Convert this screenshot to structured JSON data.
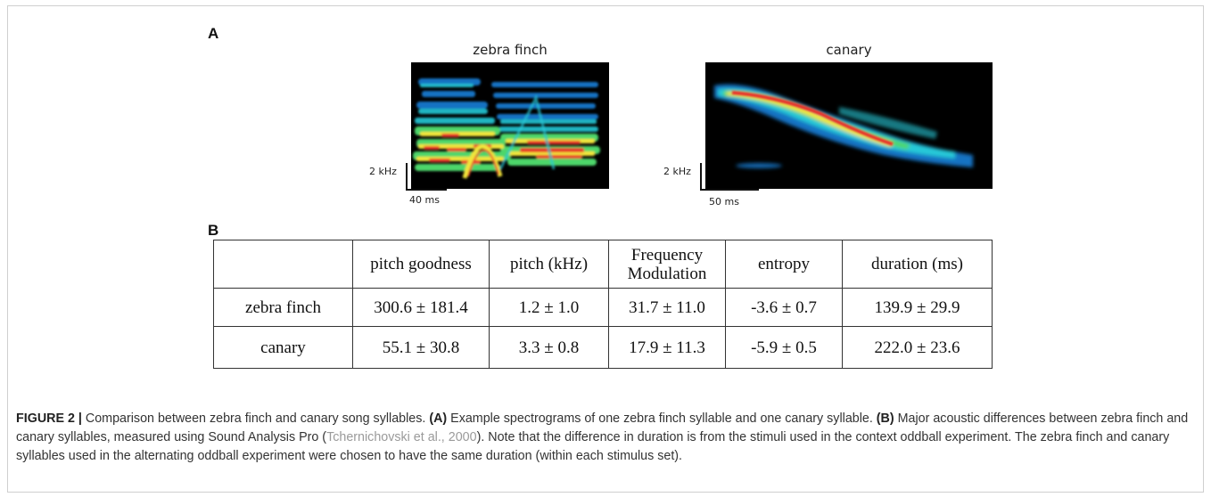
{
  "panel_a": {
    "letter": "A",
    "spectrograms": [
      {
        "title": "zebra finch",
        "freq_scale": "2 kHz",
        "time_scale": "40 ms"
      },
      {
        "title": "canary",
        "freq_scale": "2 kHz",
        "time_scale": "50 ms"
      }
    ]
  },
  "panel_b": {
    "letter": "B",
    "table": {
      "columns": [
        "",
        "pitch goodness",
        "pitch (kHz)",
        "Frequency Modulation",
        "entropy",
        "duration (ms)"
      ],
      "rows": [
        {
          "label": "zebra finch",
          "values": [
            "300.6 ± 181.4",
            "1.2 ± 1.0",
            "31.7 ± 11.0",
            "-3.6 ± 0.7",
            "139.9 ± 29.9"
          ]
        },
        {
          "label": "canary",
          "values": [
            "55.1 ± 30.8",
            "3.3 ± 0.8",
            "17.9 ± 11.3",
            "-5.9 ± 0.5",
            "222.0 ± 23.6"
          ]
        }
      ]
    }
  },
  "caption": {
    "label": "FIGURE 2 |",
    "text1": " Comparison between zebra finch and canary song syllables. ",
    "a_label": "(A)",
    "text2": " Example spectrograms of one zebra finch syllable and one canary syllable. ",
    "b_label": "(B)",
    "text3": " Major acoustic differences between zebra finch and canary syllables, measured using Sound Analysis Pro (",
    "citation": "Tchernichovski et al., 2000",
    "text4": "). Note that the difference in duration is from the stimuli used in the context oddball experiment. The zebra finch and canary syllables used in the alternating oddball experiment were chosen to have the same duration (within each stimulus set)."
  }
}
